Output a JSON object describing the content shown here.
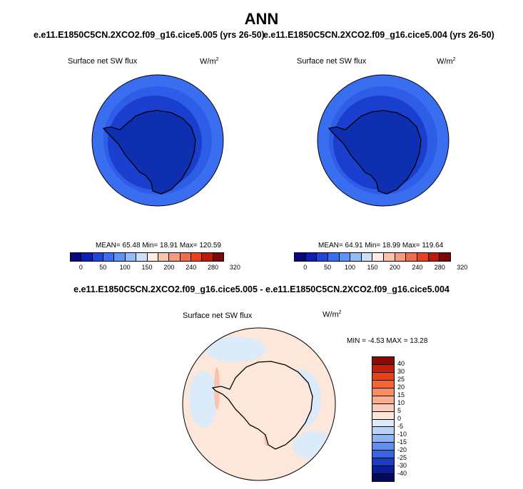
{
  "figure": {
    "season": "ANN",
    "diff_title": "e.e11.E1850C5CN.2XCO2.f09_g16.cice5.005 - e.e11.E1850C5CN.2XCO2.f09_g16.cice5.004"
  },
  "panels": [
    {
      "case": "e.e11.E1850C5CN.2XCO2.f09_g16.cice5.005 (yrs 26-50)",
      "variable": "Surface net SW flux",
      "units_base": "W/m",
      "units_exp": "2",
      "stats": "MEAN=  65.48  Min=  18.91  Max= 120.59"
    },
    {
      "case": "e.e11.E1850C5CN.2XCO2.f09_g16.cice5.004 (yrs 26-50)",
      "variable": "Surface net SW flux",
      "units_base": "W/m",
      "units_exp": "2",
      "stats": "MEAN=  64.91  Min=  18.99  Max= 119.64"
    }
  ],
  "diff_panel": {
    "variable": "Surface net SW flux",
    "units_base": "W/m",
    "units_exp": "2",
    "stats": "MIN =  -4.53 MAX =  13.28"
  },
  "colorbar_abs": {
    "ticks": [
      "0",
      "50",
      "100",
      "150",
      "200",
      "240",
      "280",
      "320"
    ],
    "colors": [
      "#08087a",
      "#0b1fb6",
      "#1f46d8",
      "#3a6ef0",
      "#5f92f7",
      "#92bdf8",
      "#cbe1fb",
      "#fdebe4",
      "#f9c3ae",
      "#f59b80",
      "#ef6d4e",
      "#e84120",
      "#bf1a08",
      "#7d0606"
    ]
  },
  "colorbar_diff": {
    "ticks": [
      "40",
      "30",
      "25",
      "20",
      "15",
      "10",
      "5",
      "0",
      "-5",
      "-10",
      "-15",
      "-20",
      "-25",
      "-30",
      "-40"
    ],
    "colors": [
      "#8a0a06",
      "#c0200c",
      "#e54315",
      "#f46632",
      "#f78b62",
      "#f9ae92",
      "#fbcdb8",
      "#fde7da",
      "#dcebfa",
      "#b7d3f7",
      "#8cb4f2",
      "#5f8fec",
      "#3765df",
      "#1b3dc6",
      "#0b1e95",
      "#05095e"
    ]
  },
  "map_colors": {
    "ocean_outer": "#3a6ef0",
    "ocean_mid": "#2e5ee8",
    "ice": "#1a3fcf",
    "continent": "#0e2fb0",
    "diff_background": "#fde7da",
    "diff_light": "#dcebfa",
    "diff_warm": "#f9c3ae"
  }
}
